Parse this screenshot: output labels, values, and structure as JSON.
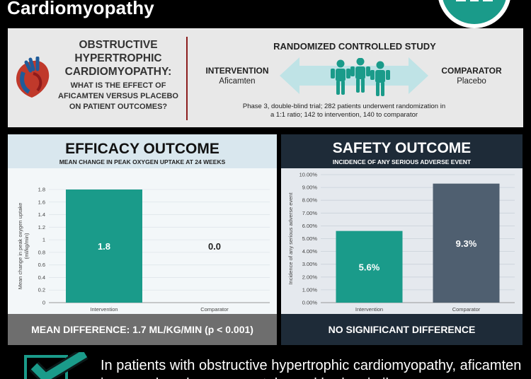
{
  "header": {
    "title": "Cardiomyopathy",
    "brand_color": "#1a9b8a"
  },
  "question": {
    "title": "OBSTRUCTIVE HYPERTROPHIC CARDIOMYOPATHY:",
    "subtitle": "WHAT IS THE EFFECT OF AFICAMTEN VERSUS PLACEBO ON PATIENT OUTCOMES?"
  },
  "study": {
    "title": "RANDOMIZED CONTROLLED STUDY",
    "intervention_label": "INTERVENTION",
    "intervention_drug": "Aficamten",
    "comparator_label": "COMPARATOR",
    "comparator_drug": "Placebo",
    "description": "Phase 3, double-blind trial; 282 patients underwent randomization in a  1:1 ratio; 142 to intervention, 140 to comparator",
    "people_icon": "people-group-icon",
    "arrow_icon": "double-arrow-icon",
    "heart_icon": "heart-icon"
  },
  "efficacy": {
    "heading": "EFFICACY OUTCOME",
    "subheading": "MEAN CHANGE IN PEAK OXYGEN UPTAKE AT 24 WEEKS",
    "footer": "MEAN DIFFERENCE: 1.7 ML/KG/MIN (p < 0.001)",
    "chart_data": {
      "type": "bar",
      "categories": [
        "Intervention",
        "Comparator"
      ],
      "values": [
        1.8,
        0.0
      ],
      "value_labels": [
        "1.8",
        "0.0"
      ],
      "ylabel": "Mean change in peak oxygen uptake (ml/kg/min)",
      "ylim": [
        0,
        1.8
      ],
      "yticks": [
        "0",
        "0.2",
        "0.4",
        "0.6",
        "0.8",
        "1",
        "1.2",
        "1.4",
        "1.6",
        "1.8"
      ],
      "grid": true,
      "bar_color": "#1a9b8a"
    }
  },
  "safety": {
    "heading": "SAFETY OUTCOME",
    "subheading": "INCIDENCE OF ANY SERIOUS ADVERSE EVENT",
    "footer": "NO SIGNIFICANT DIFFERENCE",
    "chart_data": {
      "type": "bar",
      "categories": [
        "Intervention",
        "Comparator"
      ],
      "values": [
        5.6,
        9.3
      ],
      "value_labels": [
        "5.6%",
        "9.3%"
      ],
      "ylabel": "Incidence of any serious adverse event",
      "ylim": [
        0,
        10
      ],
      "yticks": [
        "0.00%",
        "1.00%",
        "2.00%",
        "3.00%",
        "4.00%",
        "5.00%",
        "6.00%",
        "7.00%",
        "8.00%",
        "9.00%",
        "10.00%"
      ],
      "grid": true,
      "bar_colors": [
        "#1a9b8a",
        "#4f5f70"
      ]
    }
  },
  "conclusion": {
    "icon": "checkmark-icon",
    "text": "In patients with obstructive hypertrophic cardiomyopathy, aficamten improved peak oxygen uptake and had a similar"
  }
}
